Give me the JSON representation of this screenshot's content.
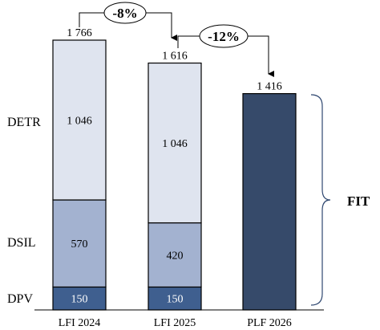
{
  "chart_data": {
    "type": "bar",
    "stacked": true,
    "categories": [
      "LFI 2024",
      "LFI 2025",
      "PLF 2026"
    ],
    "totals": [
      "1 766",
      "1 616",
      "1 416"
    ],
    "total_values": [
      1766,
      1616,
      1416
    ],
    "series": [
      {
        "name": "DPV",
        "values": [
          150,
          150,
          null
        ],
        "labels": [
          "150",
          "150",
          ""
        ],
        "color": "#3f5f8f",
        "text_color": "#ffffff"
      },
      {
        "name": "DSIL",
        "values": [
          570,
          420,
          null
        ],
        "labels": [
          "570",
          "420",
          ""
        ],
        "color": "#a3b2d0",
        "text_color": "#000000"
      },
      {
        "name": "DETR",
        "values": [
          1046,
          1046,
          null
        ],
        "labels": [
          "1 046",
          "1 046",
          ""
        ],
        "color": "#dfe4ef",
        "text_color": "#000000"
      },
      {
        "name": "FIT",
        "values": [
          null,
          null,
          1416
        ],
        "labels": [
          "",
          "",
          ""
        ],
        "color": "#364a6a",
        "text_color": "#ffffff"
      }
    ],
    "changes": [
      {
        "from": 0,
        "to": 1,
        "label": "-8%"
      },
      {
        "from": 1,
        "to": 2,
        "label": "-12%"
      }
    ],
    "brace_label": "FIT",
    "ylim": [
      0,
      1800
    ],
    "grid": false,
    "legend": "none"
  }
}
